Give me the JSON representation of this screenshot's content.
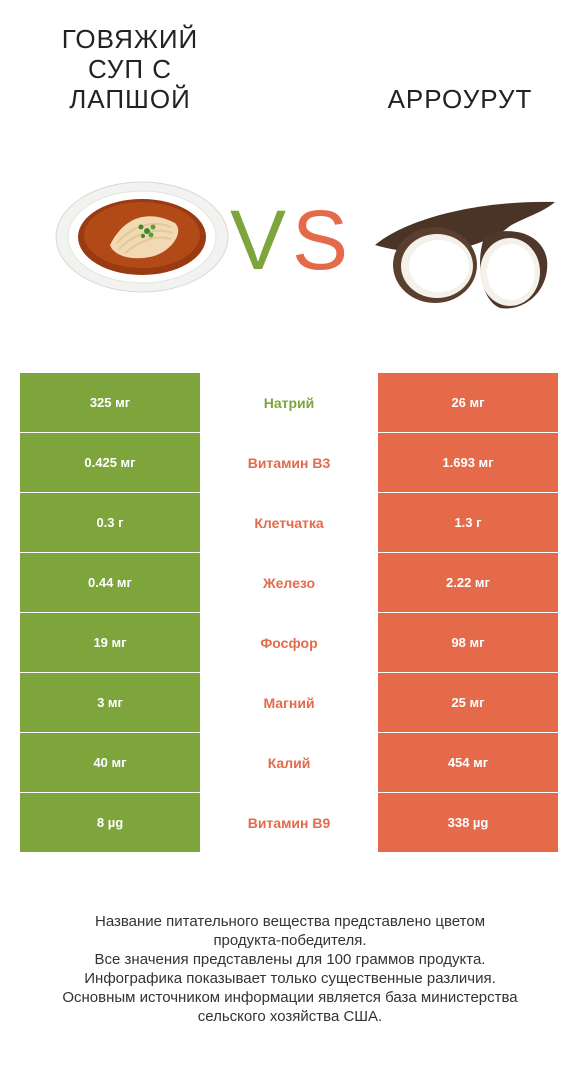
{
  "colors": {
    "left": "#7da53b",
    "right": "#e46a4a"
  },
  "header": {
    "left_title_lines": [
      "Говяжий",
      "суп с",
      "лапшой"
    ],
    "right_title": "Арроурут",
    "vs_v": "V",
    "vs_s": "S"
  },
  "rows": [
    {
      "left": "325 мг",
      "nutrient": "Натрий",
      "right": "26 мг",
      "winner": "left"
    },
    {
      "left": "0.425 мг",
      "nutrient": "Витамин B3",
      "right": "1.693 мг",
      "winner": "right"
    },
    {
      "left": "0.3 г",
      "nutrient": "Клетчатка",
      "right": "1.3 г",
      "winner": "right"
    },
    {
      "left": "0.44 мг",
      "nutrient": "Железо",
      "right": "2.22 мг",
      "winner": "right"
    },
    {
      "left": "19 мг",
      "nutrient": "Фосфор",
      "right": "98 мг",
      "winner": "right"
    },
    {
      "left": "3 мг",
      "nutrient": "Магний",
      "right": "25 мг",
      "winner": "right"
    },
    {
      "left": "40 мг",
      "nutrient": "Калий",
      "right": "454 мг",
      "winner": "right"
    },
    {
      "left": "8 µg",
      "nutrient": "Витамин B9",
      "right": "338 µg",
      "winner": "right"
    }
  ],
  "footer_lines": [
    "Название питательного вещества представлено цветом",
    "продукта-победителя.",
    "Все значения представлены для 100 граммов продукта.",
    "Инфографика показывает только существенные различия.",
    "Основным источником информации является база министерства",
    "сельского хозяйства США."
  ]
}
